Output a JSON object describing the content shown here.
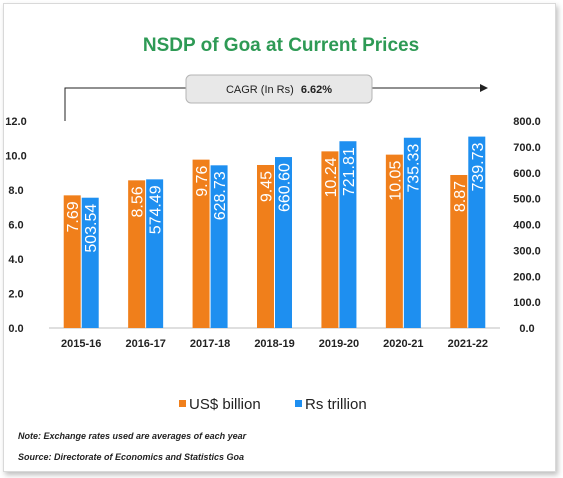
{
  "chart_data": {
    "type": "bar",
    "title": "NSDP of Goa at Current Prices",
    "categories": [
      "2015-16",
      "2016-17",
      "2017-18",
      "2018-19",
      "2019-20",
      "2020-21",
      "2021-22"
    ],
    "series": [
      {
        "name": "US$ billion",
        "axis": "left",
        "color": "#f07f1b",
        "values": [
          7.69,
          8.56,
          9.76,
          9.45,
          10.24,
          10.05,
          8.87
        ],
        "labels": [
          "7.69",
          "8.56",
          "9.76",
          "9.45",
          "10.24",
          "10.05",
          "8.87"
        ]
      },
      {
        "name": "Rs trillion",
        "axis": "right",
        "color": "#1e8ff0",
        "values": [
          503.54,
          574.49,
          628.73,
          660.6,
          721.81,
          735.33,
          739.73
        ],
        "labels": [
          "503.54",
          "574.49",
          "628.73",
          "660.60",
          "721.81",
          "735.33",
          "739.73"
        ]
      }
    ],
    "y_left": {
      "lim": [
        0,
        12
      ],
      "ticks": [
        "0.0",
        "2.0",
        "4.0",
        "6.0",
        "8.0",
        "10.0",
        "12.0"
      ]
    },
    "y_right": {
      "lim": [
        0,
        800
      ],
      "ticks": [
        "0.0",
        "100.0",
        "200.0",
        "300.0",
        "400.0",
        "500.0",
        "600.0",
        "700.0",
        "800.0"
      ]
    },
    "grid": false,
    "legend_position": "bottom",
    "annotation": {
      "label": "CAGR (In Rs)",
      "value": "6.62%"
    }
  },
  "notes": {
    "exchange": "Note: Exchange rates used are averages of each year",
    "source": "Source: Directorate of Economics and Statistics Goa"
  }
}
